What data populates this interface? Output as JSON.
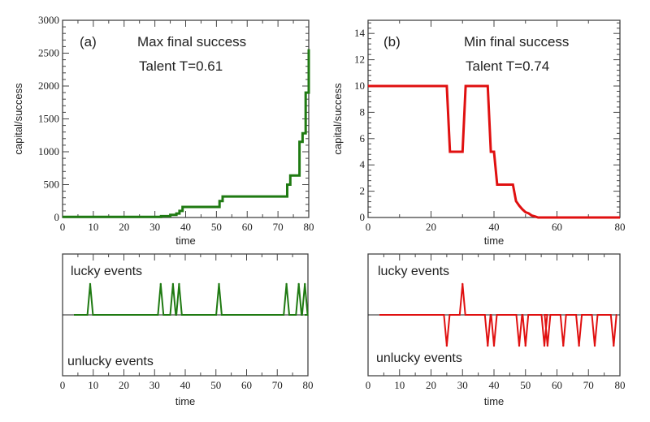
{
  "chart_data": [
    {
      "type": "line",
      "panel": "(a)",
      "title": "Max final success",
      "subtitle": "Talent T=0.61",
      "xlabel": "time",
      "ylabel": "capital/success",
      "xlim": [
        0,
        80
      ],
      "ylim": [
        0,
        3000
      ],
      "xticks": [
        "0",
        "10",
        "20",
        "30",
        "40",
        "50",
        "60",
        "70",
        "80"
      ],
      "yticks": [
        "0",
        "500",
        "1000",
        "1500",
        "2000",
        "2500",
        "3000"
      ],
      "color": "#1f7a12",
      "x": [
        0,
        32,
        32,
        35,
        35,
        37,
        37,
        38,
        38,
        39,
        39,
        51,
        51,
        52,
        52,
        73,
        73,
        74,
        74,
        77,
        77,
        78,
        78,
        79,
        79,
        80,
        80
      ],
      "y": [
        10,
        10,
        20,
        20,
        40,
        40,
        60,
        60,
        100,
        100,
        160,
        160,
        250,
        250,
        320,
        320,
        500,
        500,
        640,
        640,
        1150,
        1150,
        1280,
        1280,
        1900,
        1900,
        2560
      ]
    },
    {
      "type": "line",
      "panel": "(b)",
      "title": "Min final success",
      "subtitle": "Talent T=0.74",
      "xlabel": "time",
      "ylabel": "capital/success",
      "xlim": [
        0,
        80
      ],
      "ylim": [
        0,
        15
      ],
      "xticks": [
        "0",
        "20",
        "40",
        "60",
        "80"
      ],
      "yticks": [
        "0",
        "2",
        "4",
        "6",
        "8",
        "10",
        "12",
        "14"
      ],
      "color": "#e01010",
      "x": [
        0,
        25,
        26,
        30,
        31,
        38,
        39,
        40,
        41,
        46,
        47,
        48,
        49,
        50,
        51,
        52,
        53,
        54,
        80
      ],
      "y": [
        10,
        10,
        5,
        5,
        10,
        10,
        5,
        5,
        2.5,
        2.5,
        1.25,
        0.9,
        0.625,
        0.4,
        0.3125,
        0.15,
        0.08,
        0,
        0
      ]
    },
    {
      "type": "line",
      "panel": "(a) events",
      "xlabel": "time",
      "xlim": [
        0,
        80
      ],
      "xticks": [
        "0",
        "10",
        "20",
        "30",
        "40",
        "50",
        "60",
        "70",
        "80"
      ],
      "top_label": "lucky events",
      "bottom_label": "unlucky events",
      "color": "#1f7a12",
      "lucky_times": [
        9,
        32,
        36,
        38,
        51,
        73,
        77,
        79
      ],
      "unlucky_times": []
    },
    {
      "type": "line",
      "panel": "(b) events",
      "xlabel": "time",
      "xlim": [
        0,
        80
      ],
      "xticks": [
        "0",
        "10",
        "20",
        "30",
        "40",
        "50",
        "60",
        "70",
        "80"
      ],
      "top_label": "lucky events",
      "bottom_label": "unlucky events",
      "color": "#e01010",
      "lucky_times": [
        30
      ],
      "unlucky_times": [
        25,
        38,
        40,
        48,
        50,
        56,
        57,
        62,
        67,
        72,
        78
      ]
    }
  ]
}
